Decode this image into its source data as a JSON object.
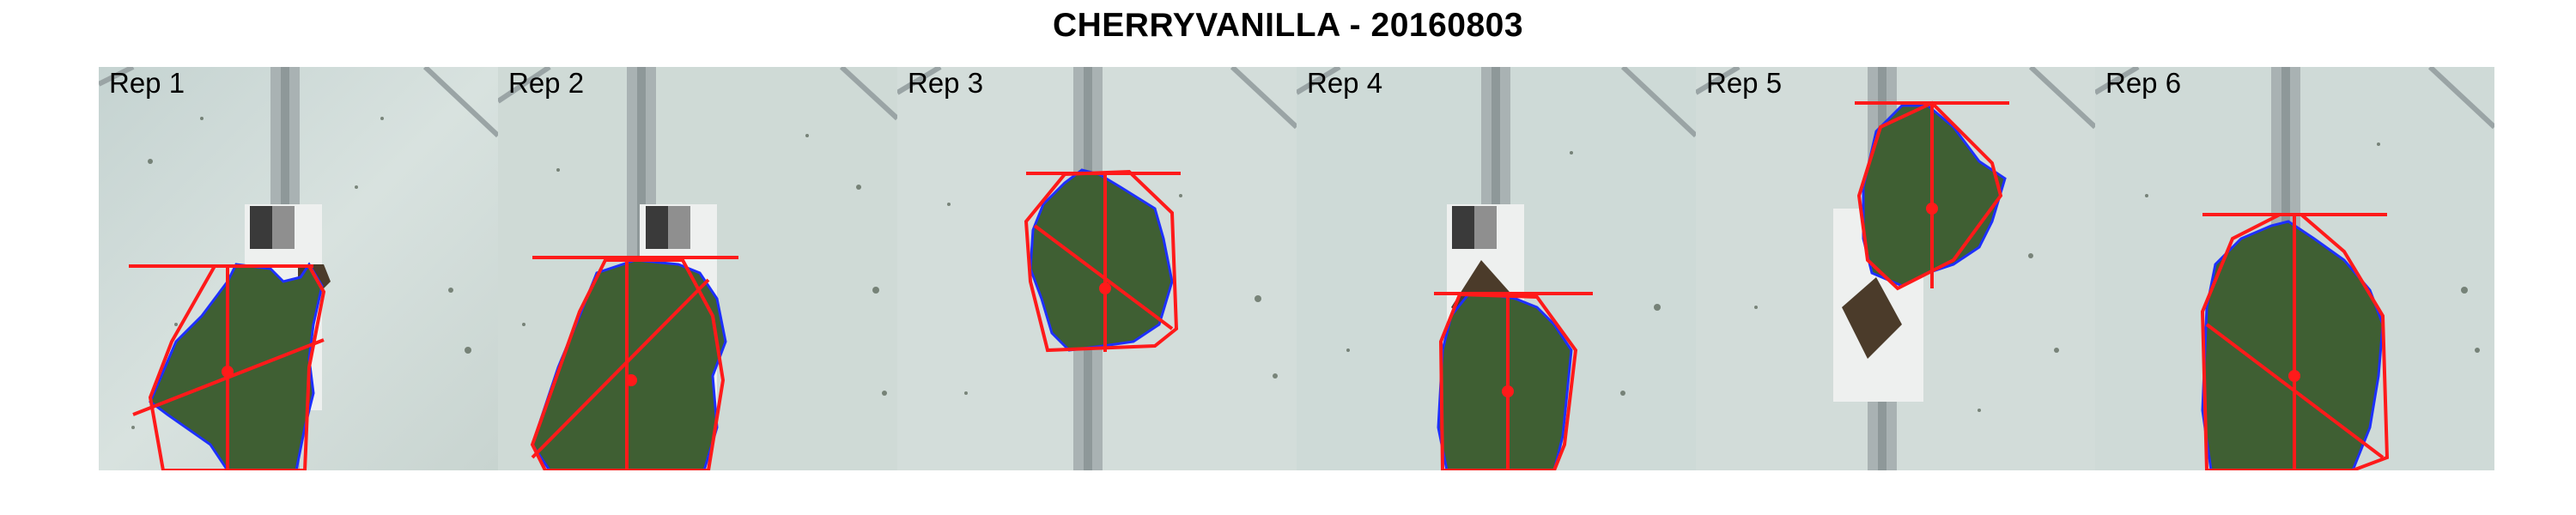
{
  "title": "CHERRYVANILLA - 20160803",
  "panels": [
    {
      "label": "Rep 1"
    },
    {
      "label": "Rep 2"
    },
    {
      "label": "Rep 3"
    },
    {
      "label": "Rep 4"
    },
    {
      "label": "Rep 5"
    },
    {
      "label": "Rep 6"
    }
  ],
  "colors": {
    "background_tray": "#cdd9d6",
    "leaf": "#3f5f33",
    "leaf_outline": "#1d2fff",
    "hull_and_axes": "#ff1a1a",
    "rail": "#a9b2b3"
  }
}
